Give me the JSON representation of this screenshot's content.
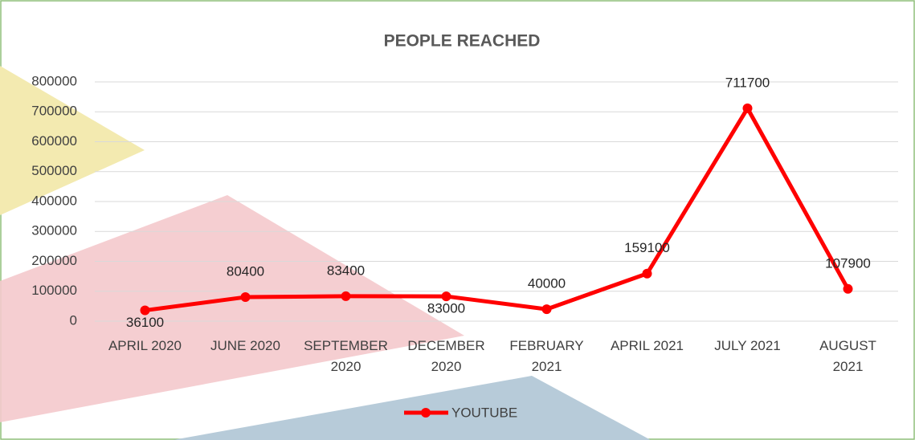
{
  "chart_data": {
    "type": "line",
    "title": "PEOPLE REACHED",
    "categories": [
      "APRIL 2020",
      "JUNE 2020",
      "SEPTEMBER 2020",
      "DECEMBER 2020",
      "FEBRUARY 2021",
      "APRIL 2021",
      "JULY 2021",
      "AUGUST 2021"
    ],
    "series": [
      {
        "name": "YOUTUBE",
        "color": "#ff0000",
        "values": [
          36100,
          80400,
          83400,
          83000,
          40000,
          159100,
          711700,
          107900
        ]
      }
    ],
    "ylim": [
      0,
      800000
    ],
    "yticks": [
      0,
      100000,
      200000,
      300000,
      400000,
      500000,
      600000,
      700000,
      800000
    ],
    "grid": true,
    "legend": "bottom"
  }
}
